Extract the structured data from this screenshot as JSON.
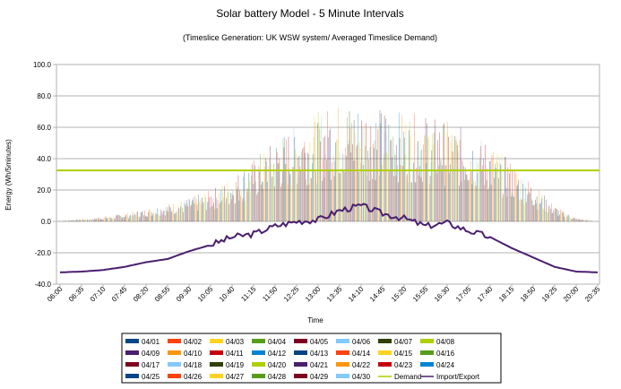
{
  "chart_data": {
    "type": "line",
    "title": "Solar battery Model - 5 Minute Intervals",
    "subtitle": "(Timeslice Generation: UK WSW system/ Averaged Timeslice Demand)",
    "xlabel": "Time",
    "ylabel": "Energy (Wh/5minutes)",
    "ylim": [
      -40,
      100
    ],
    "yticks": [
      "100.0",
      "80.0",
      "60.0",
      "40.0",
      "20.0",
      "0.0",
      "-20.0",
      "-40.0"
    ],
    "grid": "horizontal",
    "legend_position": "bottom",
    "categories": [
      "06:00",
      "06:35",
      "07:10",
      "07:45",
      "08:20",
      "08:55",
      "09:30",
      "10:05",
      "10:40",
      "11:15",
      "11:50",
      "12:25",
      "13:00",
      "13:35",
      "14:10",
      "14:45",
      "15:20",
      "15:55",
      "16:30",
      "17:05",
      "17:40",
      "18:15",
      "18:50",
      "19:25",
      "20:00",
      "20:35"
    ],
    "daily_generation_series": [
      "04/01",
      "04/02",
      "04/03",
      "04/04",
      "04/05",
      "04/06",
      "04/07",
      "04/08",
      "04/09",
      "04/10",
      "04/11",
      "04/12",
      "04/13",
      "04/14",
      "04/15",
      "04/16",
      "04/17",
      "04/18",
      "04/19",
      "04/20",
      "04/21",
      "04/22",
      "04/23",
      "04/24",
      "04/25",
      "04/26",
      "04/27",
      "04/28",
      "04/29",
      "04/30"
    ],
    "series_colors": [
      "#004586",
      "#ff420e",
      "#ffd320",
      "#579d1c",
      "#7e0021",
      "#83caff",
      "#314004",
      "#aecf00",
      "#4b1f6f",
      "#ff950e",
      "#c5000b",
      "#0084d1",
      "#004586",
      "#ff420e",
      "#ffd320",
      "#579d1c",
      "#7e0021",
      "#83caff",
      "#314004",
      "#aecf00",
      "#4b1f6f",
      "#ff950e",
      "#c5000b",
      "#0084d1",
      "#004586",
      "#ff420e",
      "#ffd320",
      "#579d1c",
      "#7e0021",
      "#83caff"
    ],
    "generation_profile": {
      "x": [
        "06:00",
        "06:35",
        "07:10",
        "07:45",
        "08:20",
        "08:55",
        "09:30",
        "10:05",
        "10:40",
        "11:15",
        "11:50",
        "12:25",
        "13:00",
        "13:35",
        "14:10",
        "14:45",
        "15:20",
        "15:55",
        "16:30",
        "17:05",
        "17:40",
        "18:15",
        "18:50",
        "19:25",
        "20:00",
        "20:35"
      ],
      "peak_values": [
        0.5,
        1.5,
        3,
        5,
        8,
        11,
        15,
        20,
        28,
        40,
        52,
        62,
        70,
        76,
        75,
        72,
        70,
        68,
        64,
        58,
        50,
        38,
        24,
        10,
        2,
        0
      ]
    },
    "demand": {
      "name": "Demand",
      "value": 32.5,
      "color": "#aecf00"
    },
    "import_export": {
      "name": "Import/Export",
      "color": "#4b1f6f",
      "x": [
        "06:00",
        "06:35",
        "07:10",
        "07:45",
        "08:20",
        "08:55",
        "09:30",
        "10:05",
        "10:40",
        "11:15",
        "11:50",
        "12:25",
        "13:00",
        "13:35",
        "14:10",
        "14:45",
        "15:20",
        "15:55",
        "16:30",
        "17:05",
        "17:40",
        "18:15",
        "18:50",
        "19:25",
        "20:00",
        "20:35"
      ],
      "values": [
        -32.5,
        -32,
        -31,
        -29,
        -26,
        -24,
        -19,
        -15,
        -10,
        -8,
        -3,
        0,
        1,
        7,
        10,
        5,
        2,
        -3,
        -1,
        -6,
        -10,
        -17,
        -23,
        -29,
        -32,
        -32.5
      ]
    }
  }
}
